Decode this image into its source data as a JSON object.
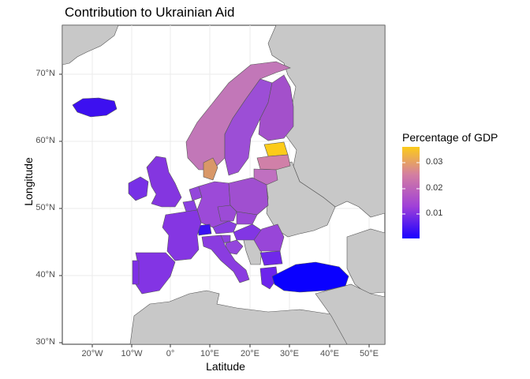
{
  "title": "Contribution to Ukrainian Aid",
  "axes": {
    "x_label": "Latitude",
    "y_label": "Longitude",
    "x_ticks": [
      "20°W",
      "10°W",
      "0°",
      "10°E",
      "20°E",
      "30°E",
      "40°E",
      "50°E"
    ],
    "y_ticks": [
      "70°N",
      "60°N",
      "50°N",
      "40°N",
      "30°N"
    ]
  },
  "legend": {
    "title": "Percentage of GDP",
    "ticks": [
      "0.03",
      "0.02",
      "0.01"
    ],
    "colors": [
      "#1a00ff",
      "#a040d8",
      "#d47fa0",
      "#fccb1a"
    ]
  },
  "colors": {
    "background_land": "#c8c8c8",
    "border": "#555555",
    "panel": "#ffffff",
    "grid": "#ebebeb"
  },
  "chart_data": {
    "type": "map",
    "title": "Contribution to Ukrainian Aid",
    "xlabel": "Latitude",
    "ylabel": "Longitude",
    "xlim": [
      -26,
      54
    ],
    "ylim": [
      30,
      75
    ],
    "fill_variable": "Percentage of GDP",
    "fill_range": [
      0.0,
      0.035
    ],
    "regions": [
      {
        "name": "Estonia",
        "value": 0.035
      },
      {
        "name": "Denmark",
        "value": 0.027
      },
      {
        "name": "Latvia",
        "value": 0.022
      },
      {
        "name": "Norway",
        "value": 0.018
      },
      {
        "name": "Lithuania",
        "value": 0.017
      },
      {
        "name": "Finland",
        "value": 0.014
      },
      {
        "name": "Sweden",
        "value": 0.012
      },
      {
        "name": "Poland",
        "value": 0.011
      },
      {
        "name": "Germany",
        "value": 0.01
      },
      {
        "name": "Czechia",
        "value": 0.01
      },
      {
        "name": "Slovakia",
        "value": 0.01
      },
      {
        "name": "Netherlands",
        "value": 0.01
      },
      {
        "name": "Croatia",
        "value": 0.009
      },
      {
        "name": "Slovenia",
        "value": 0.009
      },
      {
        "name": "Romania",
        "value": 0.009
      },
      {
        "name": "United Kingdom",
        "value": 0.008
      },
      {
        "name": "Austria",
        "value": 0.008
      },
      {
        "name": "Hungary",
        "value": 0.007
      },
      {
        "name": "Portugal",
        "value": 0.007
      },
      {
        "name": "Spain",
        "value": 0.007
      },
      {
        "name": "France",
        "value": 0.007
      },
      {
        "name": "Italy",
        "value": 0.007
      },
      {
        "name": "Belgium",
        "value": 0.007
      },
      {
        "name": "Bulgaria",
        "value": 0.006
      },
      {
        "name": "Greece",
        "value": 0.005
      },
      {
        "name": "Ireland",
        "value": 0.005
      },
      {
        "name": "Iceland",
        "value": 0.004
      },
      {
        "name": "Switzerland",
        "value": 0.002
      },
      {
        "name": "Turkey",
        "value": 0.0005
      }
    ]
  }
}
